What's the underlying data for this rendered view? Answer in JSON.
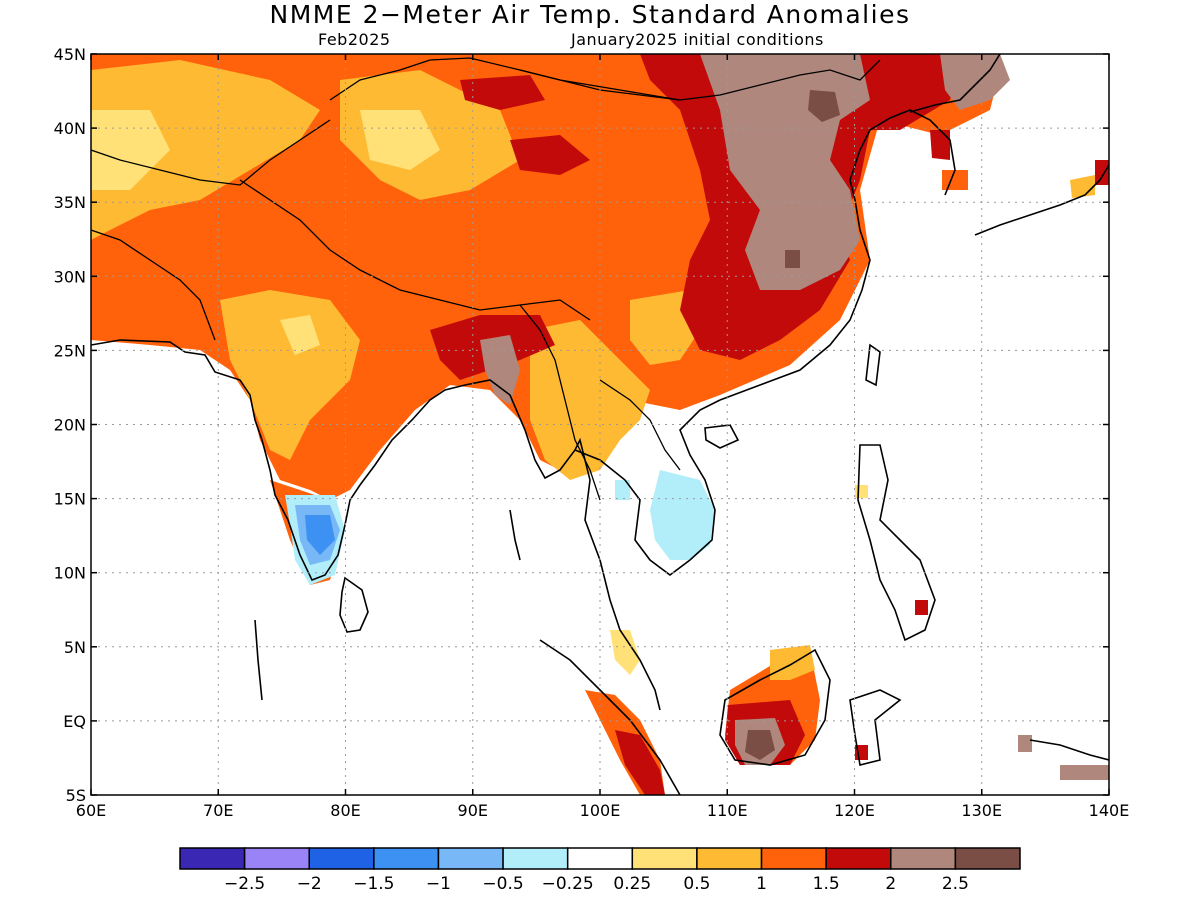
{
  "title": "NMME 2−Meter Air Temp. Standard Anomalies",
  "subtitle_left": "Feb2025",
  "subtitle_right": "January2025 initial conditions",
  "lon_ticks": [
    "60E",
    "70E",
    "80E",
    "90E",
    "100E",
    "110E",
    "120E",
    "130E",
    "140E"
  ],
  "lat_ticks": [
    "45N",
    "40N",
    "35N",
    "30N",
    "25N",
    "20N",
    "15N",
    "10N",
    "5N",
    "EQ",
    "5S"
  ],
  "legend": {
    "colors": [
      "#3a28b4",
      "#9a82f7",
      "#1f62e6",
      "#3d91f2",
      "#78b8f7",
      "#b2eefa",
      "#ffffff",
      "#ffe178",
      "#ffba33",
      "#ff620a",
      "#c20a0a",
      "#b0877c",
      "#7a4e44"
    ],
    "labels": [
      "−2.5",
      "−2",
      "−1.5",
      "−1",
      "−0.5",
      "−0.25",
      "0.25",
      "0.5",
      "1",
      "1.5",
      "2",
      "2.5"
    ]
  }
}
